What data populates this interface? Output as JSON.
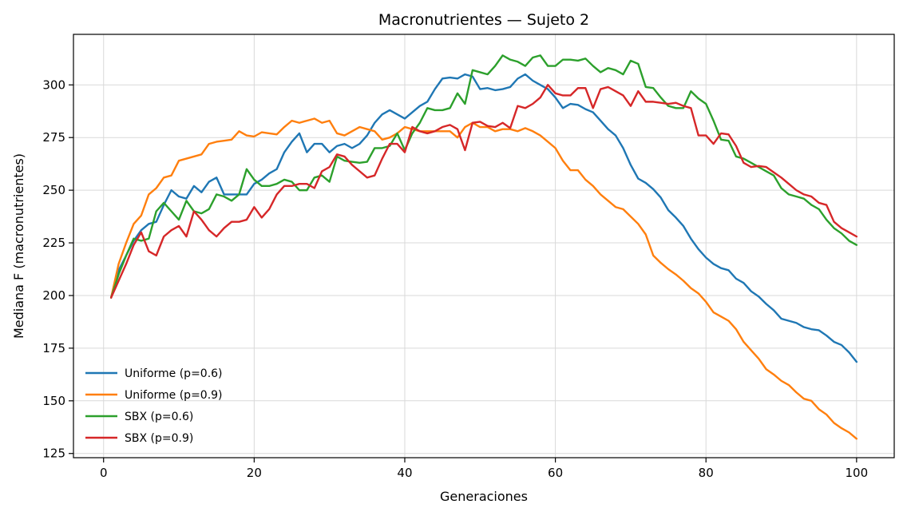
{
  "chart_data": {
    "type": "line",
    "title": "Macronutrientes — Sujeto 2",
    "xlabel": "Generaciones",
    "ylabel": "Mediana F (macronutrientes)",
    "xlim": [
      -4,
      105
    ],
    "ylim": [
      123,
      324
    ],
    "xticks": [
      0,
      20,
      40,
      60,
      80,
      100
    ],
    "yticks": [
      125,
      150,
      175,
      200,
      225,
      250,
      275,
      300
    ],
    "grid": true,
    "legend_position": "lower-left",
    "x": [
      1,
      2,
      3,
      4,
      5,
      6,
      7,
      8,
      9,
      10,
      11,
      12,
      13,
      14,
      15,
      16,
      17,
      18,
      19,
      20,
      21,
      22,
      23,
      24,
      25,
      26,
      27,
      28,
      29,
      30,
      31,
      32,
      33,
      34,
      35,
      36,
      37,
      38,
      39,
      40,
      41,
      42,
      43,
      44,
      45,
      46,
      47,
      48,
      49,
      50,
      51,
      52,
      53,
      54,
      55,
      56,
      57,
      58,
      59,
      60,
      61,
      62,
      63,
      64,
      65,
      66,
      67,
      68,
      69,
      70,
      71,
      72,
      73,
      74,
      75,
      76,
      77,
      78,
      79,
      80,
      81,
      82,
      83,
      84,
      85,
      86,
      87,
      88,
      89,
      90,
      91,
      92,
      93,
      94,
      95,
      96,
      97,
      98,
      99,
      100
    ],
    "series": [
      {
        "name": "Uniforme (p=0.6)",
        "color": "#1f77b4",
        "values": [
          199,
          212,
          219,
          226,
          231,
          234,
          235,
          243,
          250,
          247,
          246,
          252,
          249,
          254,
          256,
          248,
          248,
          248,
          248,
          253,
          255,
          258,
          260,
          268,
          273,
          277,
          268,
          272,
          272,
          268,
          271,
          272,
          270,
          272,
          276,
          282,
          286,
          288,
          286,
          284,
          287,
          290,
          292,
          298,
          303,
          303.5,
          303,
          305,
          304,
          298,
          298.5,
          297.5,
          298,
          299,
          303,
          305,
          302,
          300,
          298,
          294,
          289,
          291,
          290.5,
          288.5,
          287,
          283,
          279,
          276,
          270,
          262,
          255.5,
          253.5,
          250.5,
          246.5,
          240.5,
          237,
          233,
          227,
          222,
          218,
          215,
          213,
          212,
          208,
          206,
          202,
          199.5,
          196,
          193,
          189,
          188,
          187,
          185,
          184,
          183.5,
          181,
          178,
          176.5,
          173,
          168.5
        ]
      },
      {
        "name": "Uniforme (p=0.9)",
        "color": "#ff7f0e",
        "values": [
          199,
          215,
          225,
          234,
          238,
          248,
          251,
          256,
          257,
          264,
          265,
          266,
          267,
          272,
          273,
          273.5,
          274,
          278,
          276,
          275.5,
          277.5,
          277,
          276.5,
          280,
          283,
          282,
          283,
          284,
          282,
          283,
          277,
          276,
          278,
          280,
          279,
          278,
          274,
          275,
          277,
          280,
          279,
          278,
          278,
          278,
          278,
          278,
          275,
          280,
          282,
          280,
          280,
          278,
          279,
          279,
          278,
          279.5,
          278,
          276,
          273,
          270,
          264,
          259.5,
          259.5,
          255,
          252,
          248,
          245,
          242,
          241,
          237.5,
          234,
          229,
          219,
          215.5,
          212.5,
          210,
          207,
          203.5,
          201,
          197,
          192,
          190,
          188,
          184,
          178,
          174,
          170,
          165,
          162.5,
          159.5,
          157.5,
          154,
          151,
          150,
          146,
          143.5,
          139.5,
          137,
          135,
          132
        ]
      },
      {
        "name": "SBX (p=0.6)",
        "color": "#2ca02c",
        "values": [
          199,
          210,
          219,
          227,
          226,
          227,
          240,
          244,
          240,
          236,
          245,
          240,
          239,
          241,
          248,
          247,
          245,
          248,
          260,
          255,
          252,
          252,
          253,
          255,
          254,
          250,
          250,
          256,
          257,
          254,
          266,
          264,
          263.5,
          263,
          263.5,
          270,
          270,
          271,
          277,
          269,
          277,
          282,
          289,
          288,
          288,
          289,
          296,
          291,
          307,
          306,
          305,
          309,
          314,
          312,
          311,
          309,
          313,
          314,
          309,
          309,
          312,
          312,
          311.5,
          312.5,
          309,
          306,
          308,
          307,
          305,
          311.5,
          310,
          299,
          298.5,
          294,
          290,
          289,
          289,
          297,
          293.5,
          291,
          283,
          274,
          273.5,
          266,
          265,
          263,
          261,
          259,
          257,
          251,
          248,
          247,
          246,
          243,
          241,
          236,
          232,
          229.5,
          226,
          224
        ]
      },
      {
        "name": "SBX (p=0.9)",
        "color": "#d62728",
        "values": [
          199,
          207,
          215,
          224,
          230,
          221,
          219,
          228,
          231,
          233,
          228,
          240,
          236,
          231,
          228,
          232,
          235,
          235,
          236,
          242,
          237,
          241,
          248,
          252,
          252,
          253,
          253,
          251,
          259,
          261,
          267,
          266,
          262,
          259,
          256,
          257,
          265,
          272,
          272,
          268,
          280,
          278,
          277,
          278,
          280,
          281,
          279,
          269,
          282,
          282.5,
          280.5,
          280,
          282,
          279.5,
          290,
          289,
          291,
          294,
          300,
          296,
          295,
          295,
          298.5,
          298.5,
          289,
          298,
          299,
          297,
          295,
          290,
          297,
          292,
          292,
          291.5,
          291,
          291.5,
          290,
          289,
          276,
          276,
          272,
          277,
          276.5,
          271,
          263,
          261,
          261.5,
          261,
          258.5,
          256,
          253,
          250,
          248,
          247,
          244,
          243,
          235,
          232,
          230,
          228
        ]
      }
    ]
  }
}
